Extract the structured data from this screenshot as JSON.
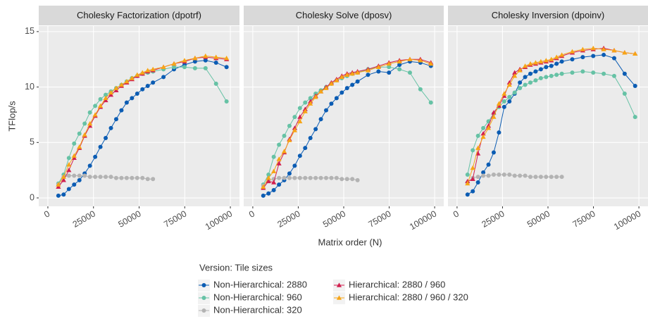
{
  "ylabel": "TFlop/s",
  "xlabel": "Matrix order (N)",
  "legend": {
    "title": "Version: Tile sizes",
    "entries": [
      {
        "name": "Non-Hierarchical: 2880",
        "color": "#0b5cb3",
        "marker": "circle"
      },
      {
        "name": "Non-Hierarchical: 960",
        "color": "#66c2a5",
        "marker": "circle"
      },
      {
        "name": "Non-Hierarchical: 320",
        "color": "#b3b3b3",
        "marker": "circle"
      },
      {
        "name": "Hierarchical: 2880 / 960",
        "color": "#d11f4f",
        "marker": "triangle"
      },
      {
        "name": "Hierarchical: 2880 / 960 / 320",
        "color": "#f7a516",
        "marker": "triangle"
      }
    ]
  },
  "chart_data": [
    {
      "type": "line",
      "title": "Cholesky Factorization (dpotrf)",
      "x": [
        5760,
        8640,
        11520,
        14400,
        17280,
        20160,
        23040,
        25920,
        28800,
        31680,
        34560,
        37440,
        40320,
        43200,
        46080,
        48960,
        51840,
        54720,
        57600,
        63360,
        69120,
        74880,
        80640,
        86400,
        92160,
        97920
      ],
      "xlim": [
        -5000,
        105000
      ],
      "xticks": [
        0,
        25000,
        50000,
        75000,
        100000
      ],
      "ylim": [
        -0.76,
        15.5
      ],
      "yticks": [
        0,
        5,
        10,
        15
      ],
      "grid": true,
      "series": [
        {
          "values": [
            0.2,
            0.3,
            0.8,
            1.2,
            1.6,
            2.2,
            2.9,
            3.7,
            4.6,
            5.4,
            6.3,
            7.1,
            7.9,
            8.6,
            9.0,
            9.4,
            9.8,
            10.1,
            10.4,
            10.9,
            11.6,
            12.0,
            12.3,
            12.4,
            12.2,
            11.8
          ]
        },
        {
          "values": [
            1.3,
            2.1,
            3.6,
            4.9,
            5.8,
            6.7,
            7.7,
            8.3,
            8.9,
            9.3,
            9.6,
            9.9,
            10.2,
            10.5,
            10.8,
            11.0,
            11.2,
            11.3,
            11.4,
            11.6,
            11.8,
            11.8,
            11.7,
            11.7,
            10.3,
            8.7
          ]
        },
        {
          "values": [
            1.2,
            1.9,
            2.0,
            2.0,
            2.0,
            2.0,
            1.9,
            1.9,
            1.9,
            1.9,
            1.9,
            1.8,
            1.8,
            1.8,
            1.8,
            1.8,
            1.8,
            1.7,
            1.7,
            null,
            null,
            null,
            null,
            null,
            null,
            null
          ]
        },
        {
          "values": [
            1.0,
            1.6,
            2.5,
            3.6,
            4.5,
            5.6,
            6.5,
            7.4,
            8.2,
            8.8,
            9.3,
            9.7,
            10.1,
            10.4,
            10.7,
            11.0,
            11.2,
            11.4,
            11.5,
            11.8,
            12.1,
            12.3,
            12.6,
            12.7,
            12.6,
            12.5
          ]
        },
        {
          "values": [
            1.2,
            1.9,
            3.0,
            3.8,
            4.6,
            5.7,
            6.7,
            7.5,
            8.3,
            9.0,
            9.5,
            9.9,
            10.2,
            10.5,
            10.8,
            11.1,
            11.3,
            11.5,
            11.6,
            11.8,
            12.1,
            12.4,
            12.6,
            12.8,
            12.7,
            12.6
          ]
        }
      ]
    },
    {
      "type": "line",
      "title": "Cholesky Solve (dposv)",
      "x": [
        5760,
        8640,
        11520,
        14400,
        17280,
        20160,
        23040,
        25920,
        28800,
        31680,
        34560,
        37440,
        40320,
        43200,
        46080,
        48960,
        51840,
        54720,
        57600,
        63360,
        69120,
        74880,
        80640,
        86400,
        92160,
        97920
      ],
      "xlim": [
        -5000,
        105000
      ],
      "xticks": [
        0,
        25000,
        50000,
        75000,
        100000
      ],
      "ylim": [
        -0.76,
        15.5
      ],
      "yticks": [
        0,
        5,
        10,
        15
      ],
      "grid": true,
      "series": [
        {
          "values": [
            0.2,
            0.4,
            0.7,
            1.2,
            1.6,
            2.2,
            2.9,
            3.8,
            4.5,
            5.4,
            6.2,
            7.1,
            7.9,
            8.5,
            9.0,
            9.5,
            9.9,
            10.2,
            10.5,
            11.1,
            11.4,
            11.3,
            12.0,
            12.3,
            12.2,
            11.9
          ]
        },
        {
          "values": [
            1.2,
            2.1,
            3.7,
            4.8,
            5.6,
            6.5,
            7.3,
            8.1,
            8.6,
            9.0,
            9.4,
            9.7,
            10.0,
            10.3,
            10.6,
            10.8,
            11.0,
            11.2,
            11.3,
            11.6,
            11.8,
            11.8,
            11.6,
            11.3,
            9.8,
            8.6
          ]
        },
        {
          "values": [
            1.1,
            1.6,
            1.7,
            1.8,
            1.8,
            1.8,
            1.8,
            1.8,
            1.8,
            1.8,
            1.8,
            1.8,
            1.8,
            1.8,
            1.8,
            1.7,
            1.7,
            1.7,
            1.6,
            null,
            null,
            null,
            null,
            null,
            null,
            null
          ]
        },
        {
          "values": [
            0.9,
            1.5,
            1.4,
            3.1,
            4.1,
            5.3,
            6.3,
            7.3,
            8.0,
            8.7,
            9.2,
            9.6,
            10.0,
            10.4,
            10.7,
            11.0,
            11.2,
            11.3,
            11.4,
            11.6,
            11.9,
            12.2,
            12.4,
            12.5,
            12.5,
            12.2
          ]
        },
        {
          "values": [
            1.0,
            1.8,
            2.4,
            3.5,
            4.2,
            5.2,
            6.1,
            6.9,
            7.8,
            8.5,
            9.1,
            9.6,
            9.9,
            10.3,
            10.6,
            10.9,
            11.1,
            11.2,
            11.3,
            11.5,
            11.8,
            12.1,
            12.3,
            12.5,
            12.4,
            12.1
          ]
        }
      ]
    },
    {
      "type": "line",
      "title": "Cholesky Inversion (dpoinv)",
      "x": [
        5760,
        8640,
        11520,
        14400,
        17280,
        20160,
        23040,
        25920,
        28800,
        31680,
        34560,
        37440,
        40320,
        43200,
        46080,
        48960,
        51840,
        54720,
        57600,
        63360,
        69120,
        74880,
        80640,
        86400,
        92160,
        97920
      ],
      "xlim": [
        -5000,
        105000
      ],
      "xticks": [
        0,
        25000,
        50000,
        75000,
        100000
      ],
      "ylim": [
        -0.76,
        15.5
      ],
      "yticks": [
        0,
        5,
        10,
        15
      ],
      "grid": true,
      "series": [
        {
          "values": [
            0.3,
            0.6,
            1.4,
            2.3,
            3.0,
            4.1,
            5.9,
            8.2,
            8.7,
            9.4,
            10.4,
            10.9,
            11.2,
            11.4,
            11.6,
            11.8,
            11.9,
            12.1,
            12.3,
            12.5,
            12.7,
            12.8,
            12.9,
            12.6,
            11.2,
            10.1
          ]
        },
        {
          "values": [
            2.1,
            4.3,
            5.6,
            6.3,
            6.9,
            7.6,
            8.2,
            8.7,
            9.1,
            9.5,
            9.9,
            10.2,
            10.4,
            10.6,
            10.8,
            10.9,
            11.0,
            11.1,
            11.2,
            11.3,
            11.4,
            11.3,
            11.2,
            11.0,
            9.4,
            7.3
          ]
        },
        {
          "values": [
            1.4,
            1.8,
            1.9,
            2.0,
            2.0,
            2.1,
            2.1,
            2.1,
            2.1,
            2.0,
            2.0,
            2.0,
            1.9,
            1.9,
            1.9,
            1.9,
            1.9,
            1.9,
            1.9,
            null,
            null,
            null,
            null,
            null,
            null,
            null
          ]
        },
        {
          "values": [
            1.5,
            1.7,
            4.0,
            5.8,
            6.5,
            7.7,
            8.3,
            9.2,
            10.4,
            11.3,
            11.6,
            11.8,
            12.0,
            12.1,
            12.2,
            12.3,
            12.4,
            12.6,
            12.8,
            13.1,
            13.3,
            13.4,
            13.5,
            13.3,
            13.1,
            13.0
          ]
        },
        {
          "values": [
            1.3,
            2.7,
            4.5,
            5.5,
            6.3,
            7.3,
            8.5,
            9.4,
            10.2,
            11.0,
            11.5,
            11.9,
            12.1,
            12.2,
            12.3,
            12.4,
            12.5,
            12.7,
            12.9,
            13.2,
            13.4,
            13.5,
            13.4,
            13.3,
            13.1,
            13.0
          ]
        }
      ]
    }
  ]
}
